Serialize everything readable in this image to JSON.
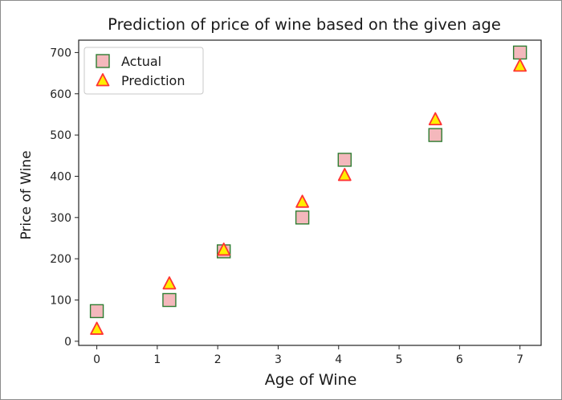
{
  "chart_data": {
    "type": "scatter",
    "title": "Prediction of price of wine based on the given age",
    "xlabel": "Age of Wine",
    "ylabel": "Price of Wine",
    "xlim": [
      -0.3,
      7.35
    ],
    "ylim": [
      -10,
      730
    ],
    "xticks": [
      "0",
      "1",
      "2",
      "3",
      "4",
      "5",
      "6",
      "7"
    ],
    "yticks": [
      "0",
      "100",
      "200",
      "300",
      "400",
      "500",
      "600",
      "700"
    ],
    "grid": false,
    "legend_position": "top-left",
    "series": [
      {
        "name": "Actual",
        "marker": "square",
        "fill": "#f4b8bc",
        "stroke": "#2e7d32",
        "x": [
          0,
          1.2,
          2.1,
          3.4,
          4.1,
          5.6,
          7
        ],
        "y": [
          73,
          100,
          218,
          300,
          440,
          500,
          700
        ]
      },
      {
        "name": "Prediction",
        "marker": "triangle",
        "fill": "#ffee00",
        "stroke": "#ff3333",
        "x": [
          0,
          1.2,
          2.1,
          3.4,
          4.1,
          5.6,
          7
        ],
        "y": [
          30,
          140,
          222,
          338,
          403,
          538,
          668
        ]
      }
    ]
  }
}
